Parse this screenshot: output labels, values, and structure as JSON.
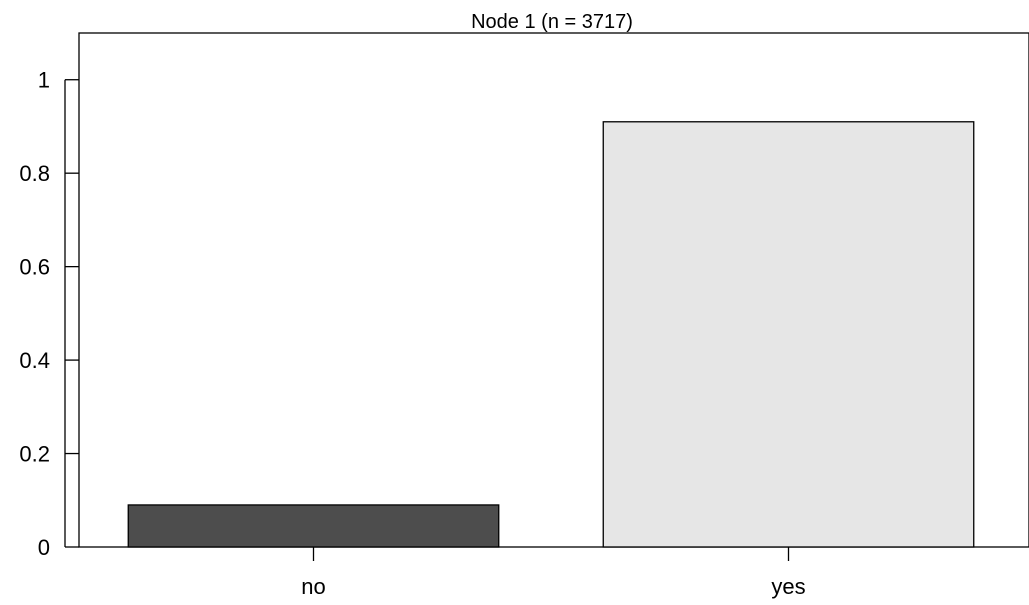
{
  "chart_data": {
    "type": "bar",
    "title": "Node 1 (n = 3717)",
    "categories": [
      "no",
      "yes"
    ],
    "values": [
      0.09,
      0.91
    ],
    "bar_colors": [
      "#4d4d4d",
      "#e6e6e6"
    ],
    "bar_stroke": "#000000",
    "xlabel": "",
    "ylabel": "",
    "ylim": [
      0,
      1.1
    ],
    "yticks": [
      0,
      0.2,
      0.4,
      0.6,
      0.8,
      1
    ],
    "ytick_labels": [
      "0",
      "0.2",
      "0.4",
      "0.6",
      "0.8",
      "1"
    ],
    "grid": false,
    "legend": "none"
  }
}
